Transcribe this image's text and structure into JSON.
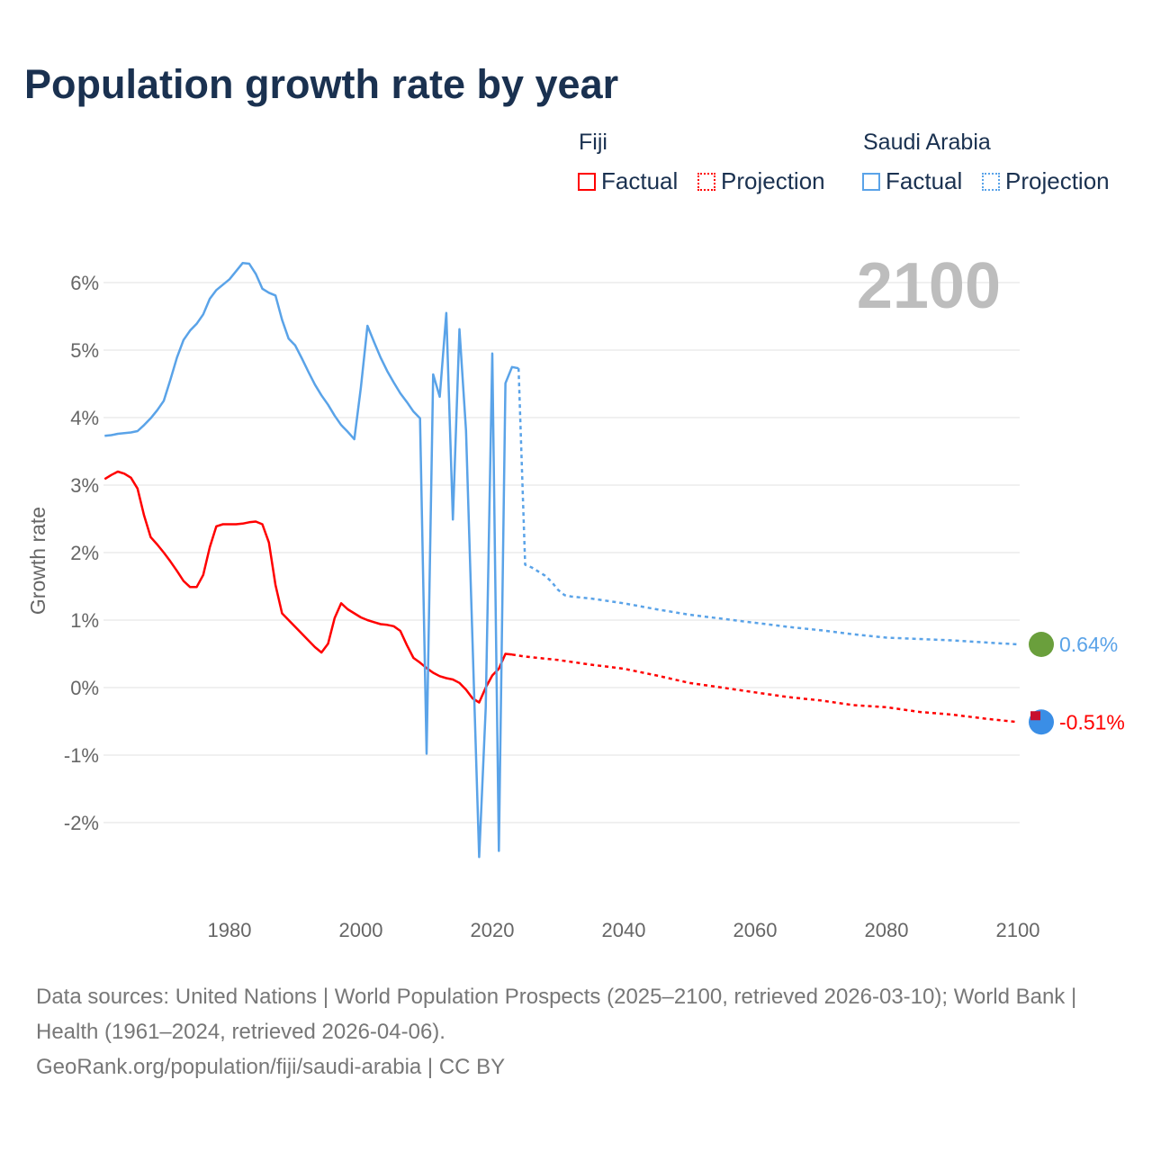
{
  "title": "Population growth rate by year",
  "legend": {
    "groups": [
      {
        "name": "Fiji",
        "color": "#ff0000",
        "factual": "Factual",
        "projection": "Projection"
      },
      {
        "name": "Saudi Arabia",
        "color": "#5aa3e8",
        "factual": "Factual",
        "projection": "Projection"
      }
    ]
  },
  "year_label": "2100",
  "sources": {
    "line1": "Data sources: United Nations | World Population Prospects (2025–2100, retrieved 2026-03-10); World Bank | Health (1961–2024, retrieved 2026-04-06).",
    "line2": "GeoRank.org/population/fiji/saudi-arabia | CC BY"
  },
  "chart_data": {
    "type": "line",
    "title": "Population growth rate by year",
    "xlabel": "",
    "ylabel": "Growth rate",
    "xlim": [
      1961,
      2100
    ],
    "ylim": [
      -3.2,
      6.5
    ],
    "x_ticks": [
      1980,
      2000,
      2020,
      2040,
      2060,
      2080,
      2100
    ],
    "x_tick_labels": [
      "1980",
      "2000",
      "2020",
      "2040",
      "2060",
      "2080",
      "2100"
    ],
    "y_ticks": [
      -2,
      -1,
      0,
      1,
      2,
      3,
      4,
      5,
      6
    ],
    "y_tick_labels": [
      "-2%",
      "-1%",
      "0%",
      "1%",
      "2%",
      "3%",
      "4%",
      "5%",
      "6%"
    ],
    "grid": true,
    "legend_placement": "top-right",
    "end_labels": {
      "Saudi Arabia": "0.64%",
      "Fiji": "-0.51%"
    },
    "series": [
      {
        "name": "Fiji",
        "kind": "Factual",
        "color": "#ff0000",
        "x": [
          1961,
          1962,
          1963,
          1964,
          1965,
          1966,
          1967,
          1968,
          1969,
          1970,
          1971,
          1972,
          1973,
          1974,
          1975,
          1976,
          1977,
          1978,
          1979,
          1980,
          1981,
          1982,
          1983,
          1984,
          1985,
          1986,
          1987,
          1988,
          1989,
          1990,
          1991,
          1992,
          1993,
          1994,
          1995,
          1996,
          1997,
          1998,
          1999,
          2000,
          2001,
          2002,
          2003,
          2004,
          2005,
          2006,
          2007,
          2008,
          2009,
          2010,
          2011,
          2012,
          2013,
          2014,
          2015,
          2016,
          2017,
          2018,
          2019,
          2020,
          2021,
          2022,
          2023
        ],
        "y": [
          3.09,
          3.15,
          3.2,
          3.17,
          3.11,
          2.95,
          2.55,
          2.23,
          2.12,
          2.0,
          1.87,
          1.73,
          1.58,
          1.49,
          1.49,
          1.67,
          2.08,
          2.39,
          2.42,
          2.42,
          2.42,
          2.43,
          2.45,
          2.46,
          2.42,
          2.15,
          1.52,
          1.1,
          1.0,
          0.9,
          0.8,
          0.7,
          0.6,
          0.52,
          0.65,
          1.03,
          1.25,
          1.16,
          1.1,
          1.04,
          1.0,
          0.97,
          0.94,
          0.93,
          0.91,
          0.84,
          0.63,
          0.44,
          0.37,
          0.29,
          0.22,
          0.17,
          0.14,
          0.12,
          0.07,
          -0.03,
          -0.16,
          -0.22,
          0.0,
          0.18,
          0.28,
          0.5,
          0.49
        ]
      },
      {
        "name": "Fiji",
        "kind": "Projection",
        "color": "#ff0000",
        "x": [
          2023,
          2025,
          2030,
          2035,
          2040,
          2045,
          2050,
          2055,
          2060,
          2065,
          2070,
          2075,
          2080,
          2085,
          2090,
          2095,
          2100
        ],
        "y": [
          0.49,
          0.46,
          0.41,
          0.34,
          0.28,
          0.18,
          0.07,
          0.0,
          -0.07,
          -0.14,
          -0.19,
          -0.26,
          -0.29,
          -0.36,
          -0.4,
          -0.46,
          -0.51
        ]
      },
      {
        "name": "Saudi Arabia",
        "kind": "Factual",
        "color": "#5aa3e8",
        "x": [
          1961,
          1962,
          1963,
          1964,
          1965,
          1966,
          1967,
          1968,
          1969,
          1970,
          1971,
          1972,
          1973,
          1974,
          1975,
          1976,
          1977,
          1978,
          1979,
          1980,
          1981,
          1982,
          1983,
          1984,
          1985,
          1986,
          1987,
          1988,
          1989,
          1990,
          1991,
          1992,
          1993,
          1994,
          1995,
          1996,
          1997,
          1998,
          1999,
          2000,
          2001,
          2002,
          2003,
          2004,
          2005,
          2006,
          2007,
          2008,
          2009,
          2010,
          2011,
          2012,
          2013,
          2014,
          2015,
          2016,
          2017,
          2018,
          2019,
          2020,
          2021,
          2022,
          2023,
          2024
        ],
        "y": [
          3.73,
          3.74,
          3.76,
          3.77,
          3.78,
          3.8,
          3.89,
          3.99,
          4.11,
          4.25,
          4.56,
          4.89,
          5.15,
          5.29,
          5.39,
          5.53,
          5.76,
          5.89,
          5.97,
          6.05,
          6.17,
          6.29,
          6.28,
          6.13,
          5.91,
          5.85,
          5.81,
          5.45,
          5.17,
          5.07,
          4.88,
          4.68,
          4.49,
          4.33,
          4.19,
          4.03,
          3.89,
          3.79,
          3.68,
          4.45,
          5.36,
          5.12,
          4.89,
          4.69,
          4.52,
          4.36,
          4.23,
          4.09,
          3.99,
          -0.98,
          4.64,
          4.31,
          5.55,
          2.49,
          5.31,
          3.81,
          0.65,
          -2.51,
          -0.3,
          4.95,
          -2.42,
          4.51,
          4.75,
          4.73
        ]
      },
      {
        "name": "Saudi Arabia",
        "kind": "Projection",
        "color": "#5aa3e8",
        "x": [
          2024,
          2025,
          2026,
          2027,
          2028,
          2029,
          2030,
          2031,
          2032,
          2035,
          2040,
          2045,
          2050,
          2055,
          2060,
          2065,
          2070,
          2075,
          2080,
          2085,
          2090,
          2095,
          2100
        ],
        "y": [
          4.73,
          1.82,
          1.78,
          1.72,
          1.66,
          1.57,
          1.45,
          1.37,
          1.35,
          1.32,
          1.25,
          1.16,
          1.08,
          1.02,
          0.96,
          0.9,
          0.85,
          0.79,
          0.74,
          0.72,
          0.7,
          0.67,
          0.64
        ]
      }
    ]
  }
}
